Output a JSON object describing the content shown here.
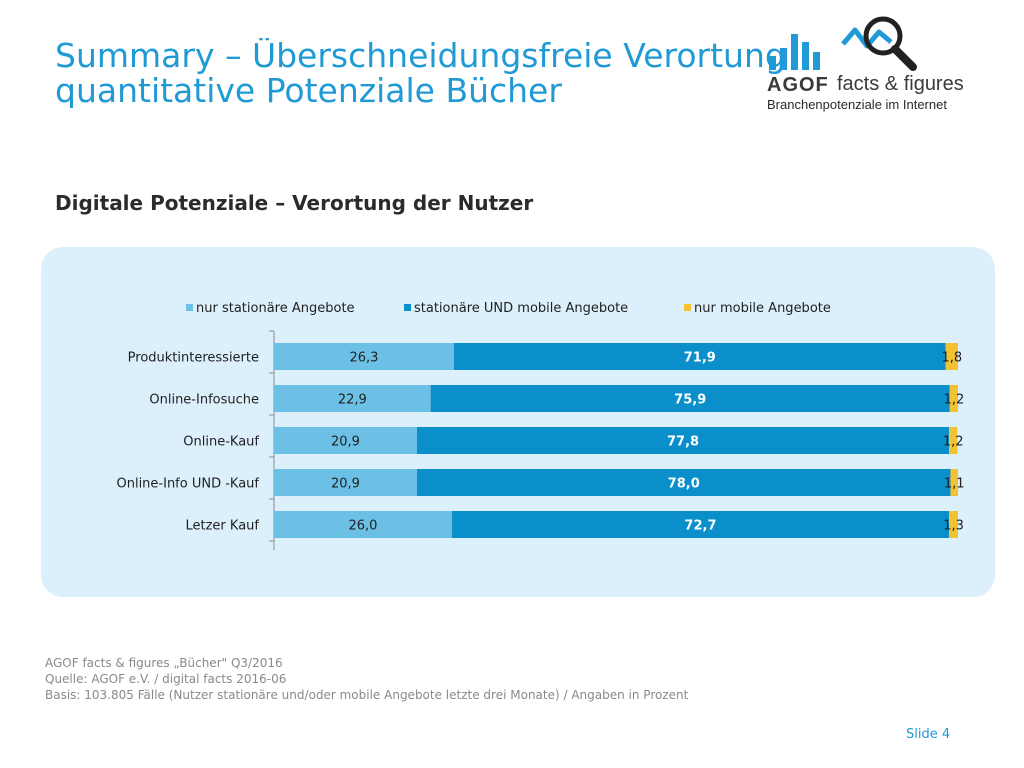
{
  "header": {
    "title_line1": "Summary – Überschneidungsfreie Verortung",
    "title_line2": "quantitative Potenziale Bücher"
  },
  "logo": {
    "brand": "AGOF",
    "product": "facts & figures",
    "tagline": "Branchenpotenziale im Internet",
    "icon_names": [
      "bar-chart-icon",
      "trend-line-icon",
      "magnifier-icon"
    ]
  },
  "subtitle": "Digitale Potenziale – Verortung der Nutzer",
  "colors": {
    "series1": "#6cc0e5",
    "series2": "#0a8fca",
    "series3": "#f2c232",
    "title": "#1f9ad6",
    "panel": "#dcf0fb"
  },
  "chart_data": {
    "type": "bar",
    "orientation": "horizontal",
    "stacked": true,
    "categories": [
      "Produktinteressierte",
      "Online-Infosuche",
      "Online-Kauf",
      "Online-Info UND -Kauf",
      "Letzer Kauf"
    ],
    "series": [
      {
        "name": "nur stationäre Angebote",
        "values": [
          26.3,
          22.9,
          20.9,
          20.9,
          26.0
        ],
        "labels": [
          "26,3",
          "22,9",
          "20,9",
          "20,9",
          "26,0"
        ]
      },
      {
        "name": "stationäre UND mobile Angebote",
        "values": [
          71.9,
          75.9,
          77.8,
          78.0,
          72.7
        ],
        "labels": [
          "71,9",
          "75,9",
          "77,8",
          "78,0",
          "72,7"
        ]
      },
      {
        "name": "nur mobile Angebote",
        "values": [
          1.8,
          1.2,
          1.2,
          1.1,
          1.3
        ],
        "labels": [
          "1,8",
          "1,2",
          "1,2",
          "1,1",
          "1,3"
        ]
      }
    ],
    "xlim": [
      0,
      100
    ],
    "legend_position": "top",
    "grid": false
  },
  "footer": {
    "line1": "AGOF facts & figures „Bücher\" Q3/2016",
    "line2": "Quelle: AGOF e.V. / digital facts 2016-06",
    "line3": "Basis: 103.805 Fälle (Nutzer stationäre und/oder mobile Angebote letzte drei Monate) / Angaben in Prozent"
  },
  "slide_label": "Slide 4"
}
